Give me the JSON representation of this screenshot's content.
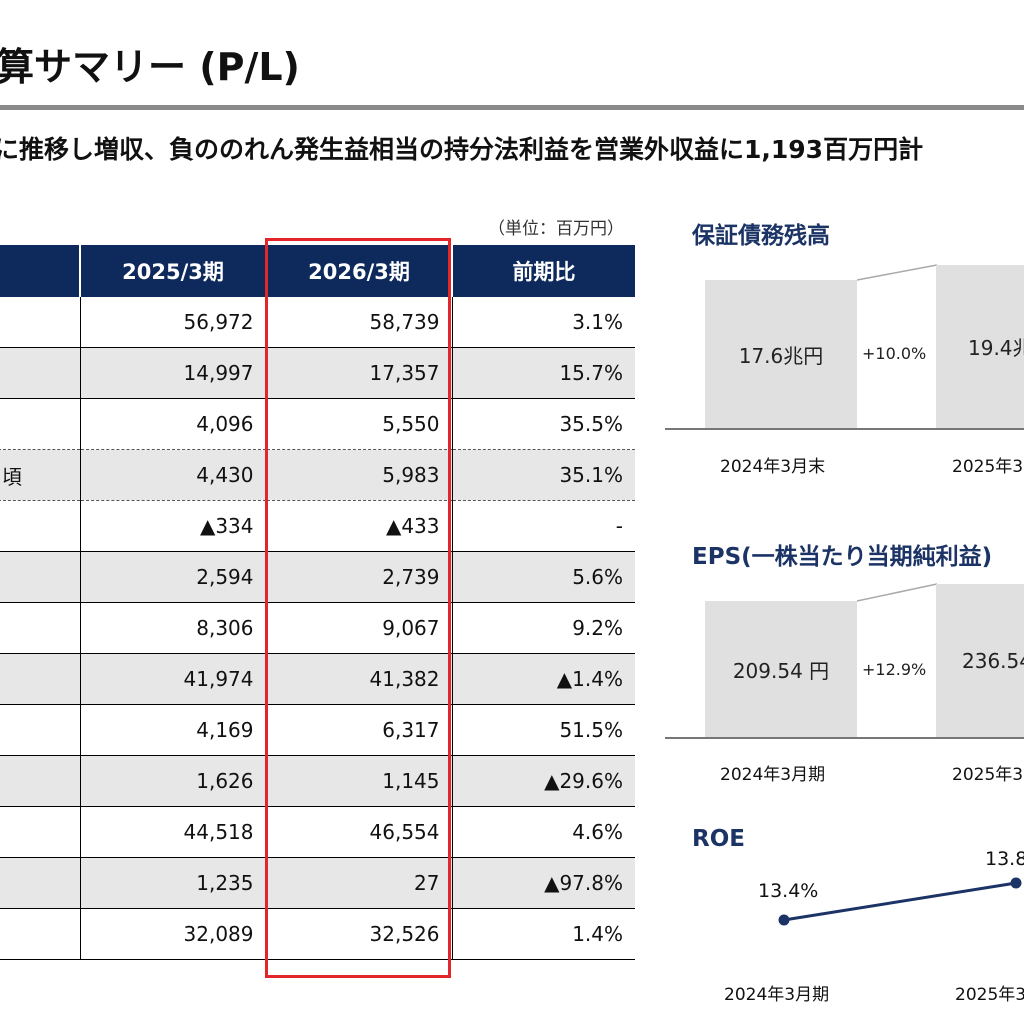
{
  "page": {
    "title": "算サマリー (P/L)",
    "headline": "に推移し増収、負ののれん発生益相当の持分法利益を営業外収益に1,193百万円計",
    "unit_note": "（単位：百万円）"
  },
  "table": {
    "headers": [
      "",
      "2025/3期",
      "2026/3期",
      "前期比"
    ],
    "rows": [
      {
        "label": "",
        "prev": "56,972",
        "curr": "58,739",
        "change": "3.1%"
      },
      {
        "label": "",
        "prev": "14,997",
        "curr": "17,357",
        "change": "15.7%"
      },
      {
        "label": "",
        "prev": "4,096",
        "curr": "5,550",
        "change": "35.5%"
      },
      {
        "label": "頃",
        "prev": "4,430",
        "curr": "5,983",
        "change": "35.1%"
      },
      {
        "label": "",
        "prev": "▲334",
        "curr": "▲433",
        "change": "-"
      },
      {
        "label": "",
        "prev": "2,594",
        "curr": "2,739",
        "change": "5.6%"
      },
      {
        "label": "",
        "prev": "8,306",
        "curr": "9,067",
        "change": "9.2%"
      },
      {
        "label": "",
        "prev": "41,974",
        "curr": "41,382",
        "change": "▲1.4%"
      },
      {
        "label": "",
        "prev": "4,169",
        "curr": "6,317",
        "change": "51.5%"
      },
      {
        "label": "",
        "prev": "1,626",
        "curr": "1,145",
        "change": "▲29.6%"
      },
      {
        "label": "",
        "prev": "44,518",
        "curr": "46,554",
        "change": "4.6%"
      },
      {
        "label": "",
        "prev": "1,235",
        "curr": "27",
        "change": "▲97.8%"
      },
      {
        "label": "",
        "prev": "32,089",
        "curr": "32,526",
        "change": "1.4%"
      }
    ]
  },
  "guarantee": {
    "title": "保証債務残高",
    "bar1_value": "17.6兆円",
    "bar2_value": "19.4兆",
    "growth": "+10.0%",
    "label1": "2024年3月末",
    "label2": "2025年3"
  },
  "eps": {
    "title": "EPS(一株当たり当期純利益)",
    "bar1_value": "209.54 円",
    "bar2_value": "236.54",
    "growth": "+12.9%",
    "label1": "2024年3月期",
    "label2": "2025年3"
  },
  "roe": {
    "title": "ROE",
    "point1": "13.4%",
    "point2": "13.8",
    "label1": "2024年3月期",
    "label2": "2025年3"
  },
  "colors": {
    "header_navy": "#0e2a5c",
    "highlight_red": "#e3262a",
    "row_gray": "#e7e7e7",
    "accent_navy": "#1c3366"
  }
}
